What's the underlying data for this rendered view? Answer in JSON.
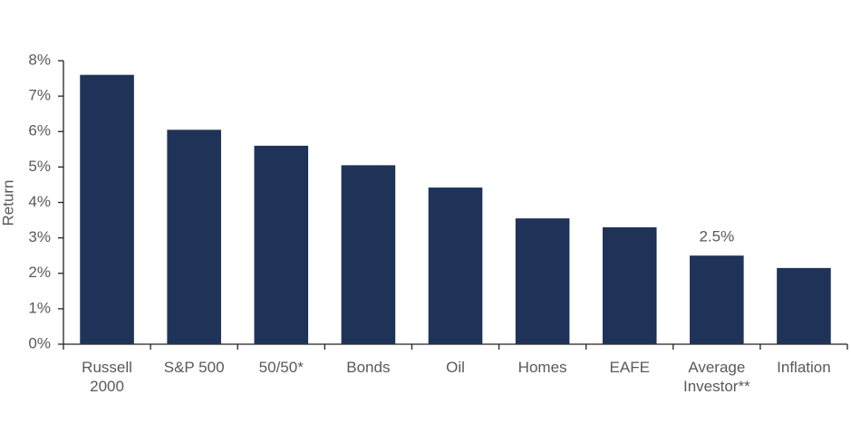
{
  "chart_data": {
    "type": "bar",
    "y_label": "Return",
    "categories": [
      "Russell 2000",
      "S&P 500",
      "50/50*",
      "Bonds",
      "Oil",
      "Homes",
      "EAFE",
      "Average Investor**",
      "Inflation"
    ],
    "values": [
      7.6,
      6.05,
      5.6,
      5.05,
      4.42,
      3.55,
      3.3,
      2.5,
      2.15
    ],
    "value_labels": [
      null,
      null,
      null,
      null,
      null,
      null,
      null,
      "2.5%",
      null
    ],
    "color": "#1f3358",
    "ylim": [
      0,
      8
    ],
    "yticks": [
      {
        "value": 0,
        "label": "0%"
      },
      {
        "value": 1,
        "label": "1%"
      },
      {
        "value": 2,
        "label": "2%"
      },
      {
        "value": 3,
        "label": "3%"
      },
      {
        "value": 4,
        "label": "4%"
      },
      {
        "value": 5,
        "label": "5%"
      },
      {
        "value": 6,
        "label": "6%"
      },
      {
        "value": 7,
        "label": "7%"
      },
      {
        "value": 8,
        "label": "8%"
      }
    ],
    "grid": false
  }
}
